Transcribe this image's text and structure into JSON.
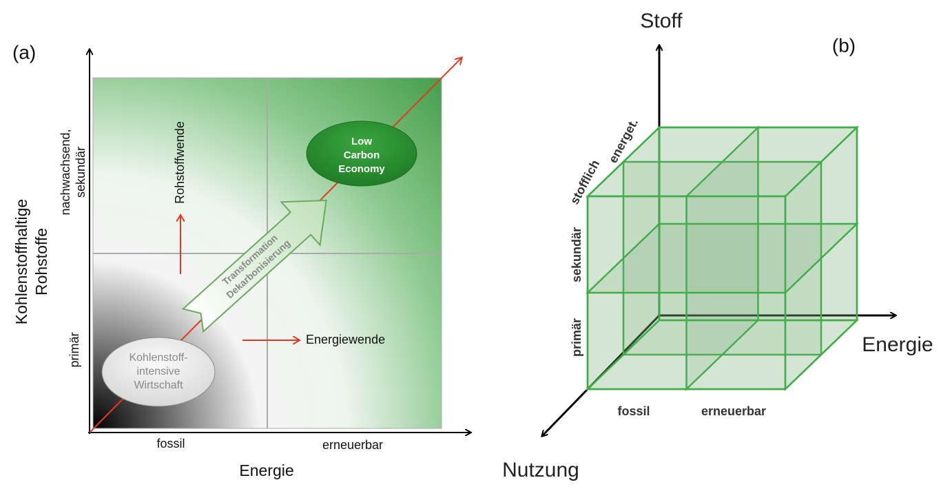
{
  "panel_a": {
    "label": "(a)",
    "y_axis_title": [
      "Kohlenstoffhaltige",
      "Rohstoffe"
    ],
    "y_categories": [
      [
        "primär"
      ],
      [
        "nachwachsend,",
        "sekundär"
      ]
    ],
    "x_categories": [
      "fossil",
      "erneuerbar"
    ],
    "x_axis_title": "Energie",
    "shift_labels": {
      "resources": "Rohstoffwende",
      "energy": "Energiewende"
    },
    "start_state": [
      "Kohlenstoff-",
      "intensive",
      "Wirtschaft"
    ],
    "target_state": [
      "Low",
      "Carbon",
      "Economy"
    ],
    "transformation": [
      "Transformation",
      "Dekarbonisierung"
    ]
  },
  "panel_b": {
    "label": "(b)",
    "axes": {
      "vertical": "Stoff",
      "horizontal": "Energie",
      "depth": "Nutzung"
    },
    "energy_categories": [
      "fossil",
      "erneuerbar"
    ],
    "material_categories": [
      "primär",
      "sekundär"
    ],
    "usage_categories": [
      "stofflich",
      "energet."
    ]
  }
}
